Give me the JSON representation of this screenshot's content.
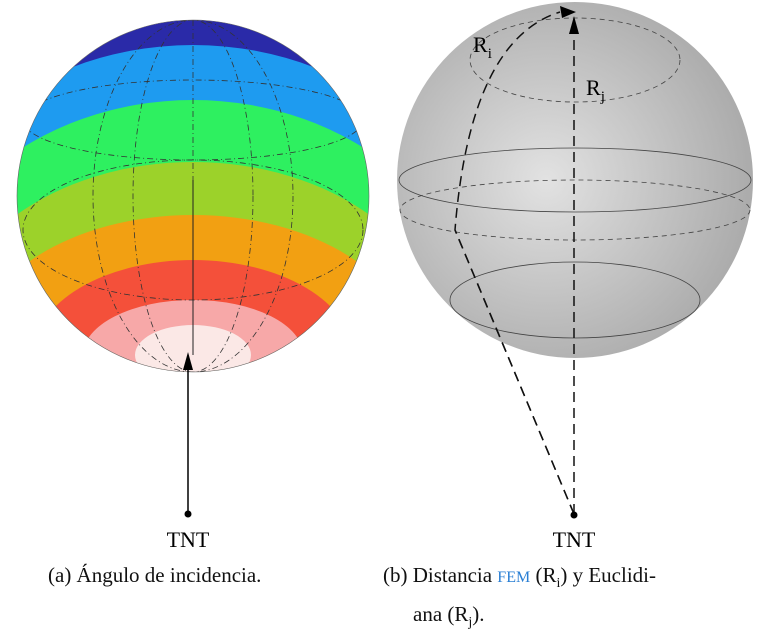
{
  "figure_a": {
    "label": "TNT",
    "caption": "(a) Ángulo de incidencia."
  },
  "figure_b": {
    "label": "TNT",
    "r_i": {
      "base": "R",
      "sub": "i"
    },
    "r_j": {
      "base": "R",
      "sub": "j"
    },
    "caption": {
      "line1": [
        "(b) Distancia",
        "FEM",
        "(R",
        "i",
        ") y Euclidi-"
      ],
      "line2": [
        "ana (R",
        "j",
        ")."
      ]
    }
  }
}
